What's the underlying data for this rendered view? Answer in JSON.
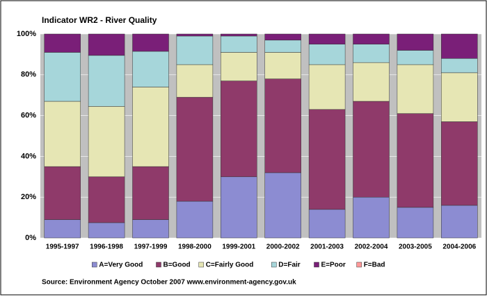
{
  "chart_data": {
    "type": "stacked_bar",
    "title": "Indicator WR2 - River Quality",
    "source": "Source: Environment Agency October 2007 www.environment-agency.gov.uk",
    "categories": [
      "1995-1997",
      "1996-1998",
      "1997-1999",
      "1998-2000",
      "1999-2001",
      "2000-2002",
      "2001-2003",
      "2002-2004",
      "2003-2005",
      "2004-2006"
    ],
    "series": [
      {
        "name": "A=Very Good",
        "color": "#8c8cd2",
        "values": [
          9,
          7.5,
          9,
          18,
          30,
          32,
          14,
          20,
          15,
          16
        ]
      },
      {
        "name": "B=Good",
        "color": "#8f3a6a",
        "values": [
          26,
          22.5,
          26,
          51,
          47,
          46,
          49,
          47,
          46,
          41
        ]
      },
      {
        "name": "C=Fairly Good",
        "color": "#e6e6b4",
        "values": [
          32,
          34.5,
          39,
          16,
          14,
          13,
          22,
          19,
          24,
          24
        ]
      },
      {
        "name": "D=Fair",
        "color": "#a6d6da",
        "values": [
          24,
          25,
          17.5,
          14,
          8,
          6,
          10,
          9,
          7,
          7
        ]
      },
      {
        "name": "E=Poor",
        "color": "#7a1f78",
        "values": [
          9,
          10.5,
          8.5,
          1,
          1,
          3,
          5,
          5,
          8,
          12
        ]
      },
      {
        "name": "F=Bad",
        "color": "#ff9999",
        "values": [
          0,
          0,
          0,
          0,
          0,
          0,
          0,
          0,
          0,
          0
        ]
      }
    ],
    "ylim": [
      0,
      100
    ],
    "yticks": [
      {
        "value": 0,
        "label": "0%"
      },
      {
        "value": 20,
        "label": "20%"
      },
      {
        "value": 40,
        "label": "40%"
      },
      {
        "value": 60,
        "label": "60%"
      },
      {
        "value": 80,
        "label": "80%"
      },
      {
        "value": 100,
        "label": "100%"
      }
    ],
    "grid": true
  }
}
